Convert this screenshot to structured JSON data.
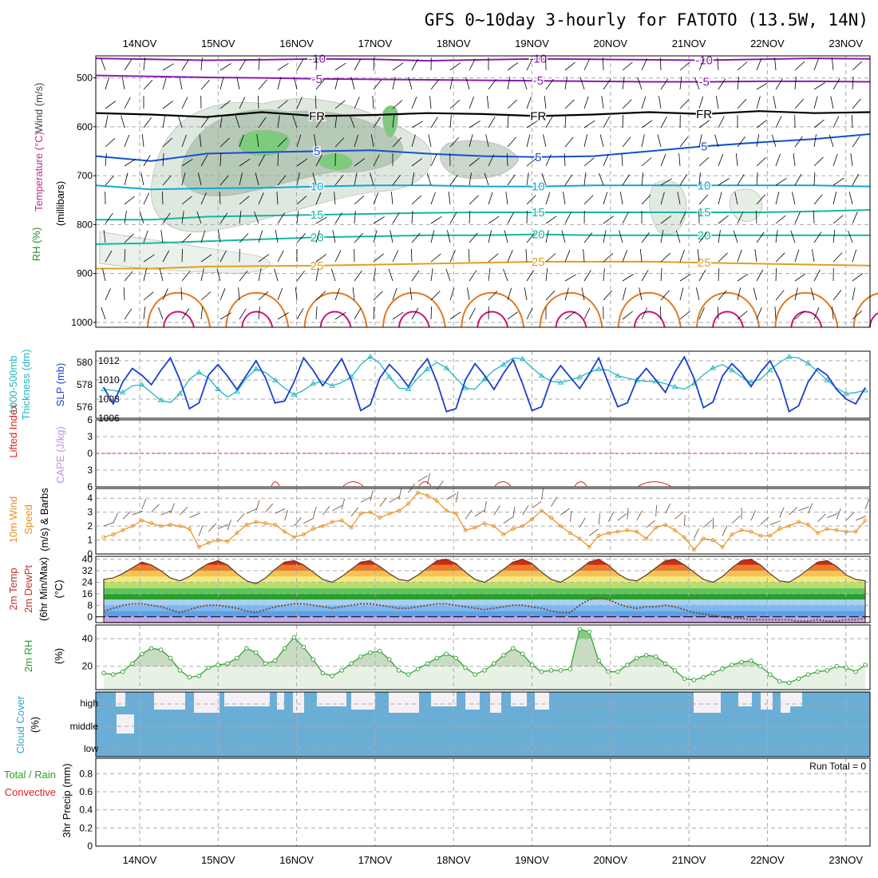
{
  "title": "GFS 0~10day 3-hourly for FATOTO (13.5W, 14N)",
  "dates": [
    "14NOV",
    "15NOV",
    "16NOV",
    "17NOV",
    "18NOV",
    "19NOV",
    "20NOV",
    "21NOV",
    "22NOV",
    "23NOV"
  ],
  "panel_labels": {
    "sounding": [
      "Wind (m/s)",
      "Temperature (°C)",
      "RH (%)",
      "(millibars)"
    ],
    "thickness": [
      "1000-500mb",
      "Thickness (dm)"
    ],
    "slp": "SLP (mb)",
    "lifted": "Lifted Index",
    "cape": "CAPE (J/kg)",
    "wind10": [
      "10m Wind",
      "Speed",
      "(m/s) & Barbs"
    ],
    "temp2m": [
      "2m Temp",
      "2m DewPt",
      "(6hr Min/Max)",
      "(°C)"
    ],
    "rh2m": [
      "2m RH",
      "(%)"
    ],
    "cloud": [
      "Cloud Cover",
      "(%)"
    ],
    "precip": [
      "Total / Rain",
      "Convective",
      "3hr Precip (mm)"
    ]
  },
  "run_total": "Run Total = 0",
  "colors": {
    "temp_purple": "#8a1bb0",
    "temp_blue": "#1550d0",
    "temp_cyan": "#10a8d8",
    "temp_teal": "#14b8a0",
    "temp_orange": "#e0a020",
    "rh_green": "#3cbc3c",
    "slp": "#1a3fcc",
    "thickness": "#20b8c0",
    "wind": "#e89020",
    "cloud": "#6aaed6",
    "rh": "#2aa02a",
    "lifted": "#e02020"
  },
  "chart_data": [
    {
      "type": "contour",
      "name": "pressure-level sounding",
      "ylabel": "millibars",
      "yticks": [
        500,
        600,
        700,
        800,
        900,
        1000
      ],
      "ylim": [
        455,
        1010
      ],
      "temperature_contours": [
        {
          "label": "-10",
          "color": "#8a1bb0",
          "levels_mb": [
            460,
            462,
            464,
            463,
            461,
            462,
            465,
            463,
            461,
            462,
            463,
            464,
            462,
            460,
            461
          ]
        },
        {
          "label": "-5",
          "color": "#8a1bb0",
          "levels_mb": [
            495,
            497,
            499,
            500,
            502,
            503,
            504,
            505,
            506,
            507,
            508,
            508,
            507,
            507,
            508
          ]
        },
        {
          "label": "FR",
          "color": "#000000",
          "levels_mb": [
            572,
            575,
            580,
            570,
            578,
            576,
            572,
            574,
            578,
            575,
            570,
            574,
            568,
            572,
            570
          ]
        },
        {
          "label": "5",
          "color": "#1550d0",
          "levels_mb": [
            660,
            670,
            655,
            652,
            650,
            648,
            655,
            660,
            662,
            660,
            650,
            640,
            632,
            625,
            615
          ]
        },
        {
          "label": "10",
          "color": "#10a8d8",
          "levels_mb": [
            720,
            728,
            726,
            725,
            722,
            720,
            720,
            722,
            722,
            720,
            720,
            720,
            720,
            720,
            722
          ]
        },
        {
          "label": "15",
          "color": "#14b8a0",
          "levels_mb": [
            790,
            790,
            784,
            782,
            780,
            778,
            776,
            775,
            775,
            775,
            775,
            775,
            775,
            773,
            770
          ]
        },
        {
          "label": "20",
          "color": "#14b8a0",
          "levels_mb": [
            840,
            838,
            834,
            830,
            826,
            824,
            822,
            822,
            820,
            822,
            822,
            822,
            822,
            822,
            822
          ]
        },
        {
          "label": "25",
          "color": "#e0a020",
          "levels_mb": [
            890,
            890,
            886,
            885,
            884,
            882,
            880,
            878,
            876,
            876,
            876,
            878,
            880,
            882,
            884
          ]
        }
      ]
    },
    {
      "type": "line",
      "name": "SLP and thickness",
      "x": "3-hourly steps (81)",
      "series": [
        {
          "name": "SLP (mb)",
          "axis": "right",
          "ylim": [
            1006,
            1013
          ],
          "yticks": [
            1006,
            1008,
            1010,
            1012
          ],
          "values": [
            1009.2,
            1007.5,
            1009.8,
            1011.2,
            1010.5,
            1009.5,
            1011.0,
            1012.3,
            1010.0,
            1007.0,
            1007.6,
            1010.5,
            1011.6,
            1010.4,
            1009.0,
            1010.5,
            1012.0,
            1010.2,
            1007.6,
            1007.8,
            1009.8,
            1012.3,
            1011.0,
            1009.4,
            1010.8,
            1012.2,
            1010.0,
            1006.8,
            1007.4,
            1010.2,
            1011.6,
            1010.6,
            1009.3,
            1011.0,
            1012.2,
            1009.8,
            1006.7,
            1007.0,
            1010.0,
            1011.7,
            1010.5,
            1009.0,
            1010.7,
            1012.1,
            1009.6,
            1006.8,
            1007.2,
            1010.1,
            1011.5,
            1010.3,
            1009.1,
            1010.6,
            1012.3,
            1009.7,
            1007.2,
            1007.6,
            1010.0,
            1011.2,
            1010.0,
            1008.7,
            1010.8,
            1012.4,
            1010.2,
            1007.1,
            1007.7,
            1010.4,
            1011.7,
            1010.7,
            1009.3,
            1010.8,
            1012.0,
            1010.0,
            1006.7,
            1007.3,
            1009.8,
            1011.2,
            1010.5,
            1009.0,
            1008.0,
            1007.5,
            1009.2
          ]
        },
        {
          "name": "1000-500mb Thickness (dm)",
          "axis": "left",
          "ylim": [
            575,
            581
          ],
          "yticks": [
            576,
            578,
            580
          ],
          "values": [
            577.6,
            577.5,
            577.3,
            577.9,
            578.0,
            577.3,
            576.6,
            576.4,
            577.2,
            578.5,
            579.1,
            578.6,
            577.6,
            576.9,
            577.4,
            578.6,
            579.4,
            579.1,
            578.4,
            577.7,
            577.1,
            577.5,
            578.1,
            578.3,
            577.9,
            578.2,
            578.7,
            579.8,
            580.5,
            579.9,
            578.7,
            577.7,
            577.6,
            578.6,
            579.4,
            580.0,
            579.5,
            578.6,
            577.7,
            577.6,
            578.5,
            579.3,
            579.8,
            580.4,
            580.3,
            579.5,
            578.8,
            578.3,
            578.2,
            578.4,
            578.7,
            579.1,
            579.4,
            579.3,
            578.8,
            578.6,
            578.4,
            578.3,
            578.3,
            578.1,
            577.8,
            577.6,
            578.1,
            578.9,
            579.5,
            579.8,
            579.3,
            578.7,
            578.2,
            578.5,
            579.3,
            580.0,
            580.5,
            580.4,
            579.9,
            579.2,
            578.4,
            577.7,
            577.2,
            577.3,
            577.5
          ]
        }
      ]
    },
    {
      "type": "line",
      "name": "Lifted Index and CAPE",
      "yticks": [
        -6,
        -3,
        0,
        3,
        6
      ],
      "ylim": [
        -6,
        6
      ],
      "series": [
        {
          "name": "Lifted Index",
          "values": []
        }
      ],
      "annotations": [
        "dashed zero line"
      ]
    },
    {
      "type": "line",
      "name": "10m Wind Speed",
      "ylabel": "(m/s)",
      "ylim": [
        0,
        4.7
      ],
      "yticks": [
        0,
        1,
        2,
        3,
        4
      ],
      "values": [
        1.2,
        1.4,
        1.7,
        2.0,
        2.4,
        2.2,
        2.0,
        2.1,
        2.0,
        1.8,
        0.5,
        0.8,
        1.0,
        0.9,
        1.5,
        2.1,
        2.3,
        2.2,
        2.1,
        1.6,
        1.2,
        1.4,
        1.8,
        2.0,
        2.3,
        2.4,
        1.9,
        2.9,
        3.0,
        2.6,
        2.9,
        3.1,
        3.6,
        4.4,
        4.2,
        3.8,
        3.1,
        2.9,
        1.7,
        1.9,
        2.2,
        2.0,
        1.4,
        1.8,
        2.0,
        2.5,
        3.1,
        2.6,
        2.0,
        1.5,
        1.1,
        0.5,
        1.3,
        1.5,
        1.6,
        1.7,
        1.6,
        1.1,
        1.9,
        2.1,
        1.7,
        1.2,
        0.3,
        1.1,
        1.0,
        0.5,
        1.4,
        1.7,
        1.6,
        1.3,
        1.3,
        1.8,
        2.0,
        2.3,
        2.1,
        1.5,
        1.8,
        1.7,
        1.6,
        1.6,
        2.4
      ]
    },
    {
      "type": "area",
      "name": "2m Temp and DewPt",
      "ylabel": "(°C)",
      "ylim": [
        -4,
        42
      ],
      "yticks": [
        0,
        8,
        16,
        24,
        32,
        40
      ],
      "series": [
        {
          "name": "2m Temp",
          "values": [
            26,
            27,
            30,
            34,
            38,
            36,
            32,
            27,
            25,
            28,
            33,
            37,
            39,
            36,
            30,
            25,
            23,
            27,
            33,
            38,
            39,
            36,
            31,
            26,
            24,
            28,
            33,
            38,
            39,
            35,
            30,
            26,
            25,
            29,
            34,
            39,
            40,
            37,
            31,
            26,
            24,
            28,
            33,
            38,
            40,
            37,
            31,
            26,
            24,
            28,
            33,
            38,
            40,
            36,
            30,
            26,
            25,
            29,
            34,
            39,
            40,
            36,
            31,
            26,
            24,
            28,
            34,
            39,
            40,
            36,
            30,
            25,
            24,
            28,
            33,
            38,
            39,
            35,
            29,
            26,
            25
          ]
        },
        {
          "name": "2m DewPt",
          "values": [
            4,
            6,
            8,
            9,
            9,
            8,
            7,
            5,
            3,
            5,
            7,
            8,
            8,
            7,
            6,
            4,
            3,
            5,
            7,
            8,
            9,
            9,
            8,
            7,
            6,
            7,
            8,
            9,
            9,
            8,
            7,
            6,
            6,
            7,
            8,
            9,
            9,
            8,
            7,
            6,
            5,
            6,
            7,
            8,
            8,
            7,
            6,
            4,
            3,
            3,
            8,
            12,
            13,
            12,
            9,
            7,
            6,
            7,
            7,
            8,
            7,
            5,
            3,
            2,
            1,
            0,
            -1,
            -1,
            -2,
            -2,
            -2,
            -2,
            -2,
            -3,
            -3,
            -2,
            -3,
            -3,
            -2,
            -2,
            -1
          ]
        }
      ]
    },
    {
      "type": "area",
      "name": "2m RH",
      "ylabel": "(%)",
      "ylim": [
        3,
        50
      ],
      "yticks": [
        20,
        40
      ],
      "values": [
        15,
        14,
        16,
        22,
        29,
        33,
        32,
        26,
        17,
        12,
        13,
        19,
        21,
        22,
        26,
        33,
        30,
        22,
        24,
        33,
        41,
        34,
        25,
        15,
        13,
        17,
        22,
        27,
        30,
        31,
        25,
        17,
        14,
        18,
        22,
        26,
        29,
        26,
        19,
        14,
        17,
        22,
        28,
        33,
        29,
        21,
        16,
        17,
        17,
        18,
        47,
        45,
        24,
        16,
        16,
        21,
        26,
        28,
        27,
        22,
        17,
        11,
        10,
        12,
        15,
        18,
        21,
        23,
        24,
        20,
        14,
        9,
        8,
        11,
        14,
        16,
        17,
        20,
        19,
        16,
        21
      ]
    },
    {
      "type": "heatmap",
      "name": "Cloud Cover",
      "ylabel": "(%)",
      "layers": [
        "high",
        "middle",
        "low"
      ]
    },
    {
      "type": "bar",
      "name": "3hr Precip",
      "ylabel": "3hr Precip (mm)",
      "ylim": [
        0,
        0.97
      ],
      "yticks": [
        0,
        0.2,
        0.4,
        0.6,
        0.8
      ],
      "series": [
        {
          "name": "Total / Rain",
          "values": []
        },
        {
          "name": "Convective",
          "values": []
        }
      ]
    }
  ]
}
